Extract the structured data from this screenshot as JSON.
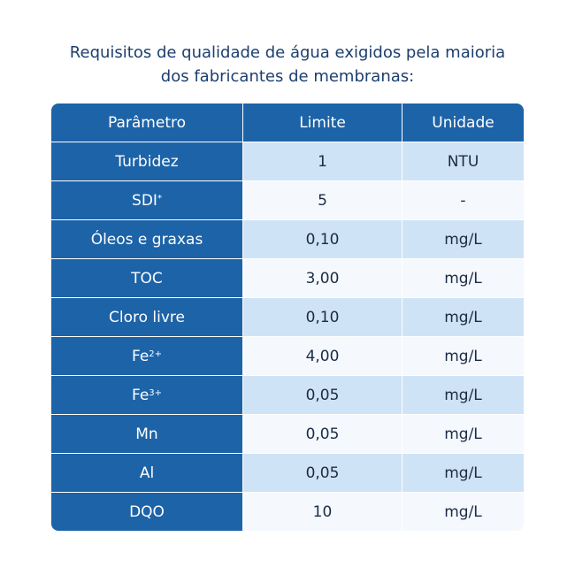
{
  "title": {
    "line1": "Requisitos de qualidade de água exigidos pela maioria",
    "line2": "dos fabricantes de membranas:"
  },
  "table": {
    "headers": [
      "Parâmetro",
      "Limite",
      "Unidade"
    ],
    "rows": [
      {
        "parameter": "Turbidez",
        "sup": "",
        "limit": "1",
        "unit": "NTU"
      },
      {
        "parameter": "SDI",
        "sup": "*",
        "limit": "5",
        "unit": "-"
      },
      {
        "parameter": "Óleos e graxas",
        "sup": "",
        "limit": "0,10",
        "unit": "mg/L"
      },
      {
        "parameter": "TOC",
        "sup": "",
        "limit": "3,00",
        "unit": "mg/L"
      },
      {
        "parameter": "Cloro livre",
        "sup": "",
        "limit": "0,10",
        "unit": "mg/L"
      },
      {
        "parameter": "Fe",
        "sup": "2+",
        "limit": "4,00",
        "unit": "mg/L"
      },
      {
        "parameter": "Fe",
        "sup": "3+",
        "limit": "0,05",
        "unit": "mg/L"
      },
      {
        "parameter": "Mn",
        "sup": "",
        "limit": "0,05",
        "unit": "mg/L"
      },
      {
        "parameter": "Al",
        "sup": "",
        "limit": "0,05",
        "unit": "mg/L"
      },
      {
        "parameter": "DQO",
        "sup": "",
        "limit": "10",
        "unit": "mg/L"
      }
    ]
  },
  "colors": {
    "title": "#1c3f6e",
    "header_bg": "#1d63a8",
    "row_light_blue": "#cfe3f6",
    "row_white": "#f5f9fd"
  }
}
